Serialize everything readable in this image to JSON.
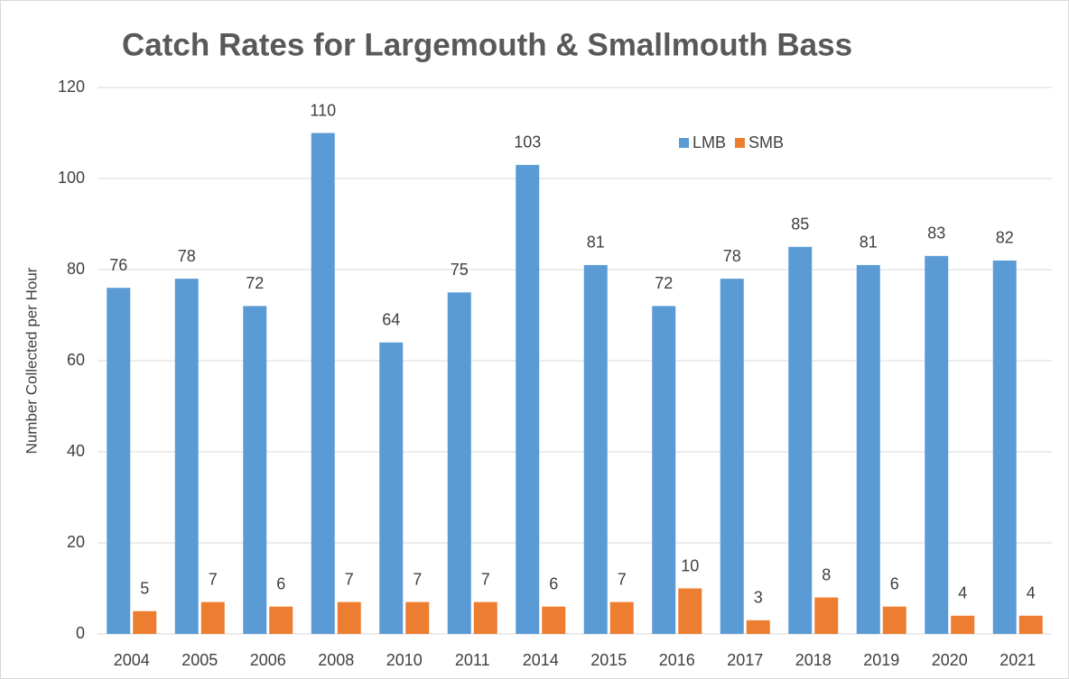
{
  "chart_data": {
    "type": "bar",
    "title": "Catch Rates for Largemouth & Smallmouth Bass",
    "y_label": "Number Collected per Hour",
    "categories": [
      "2004",
      "2005",
      "2006",
      "2008",
      "2010",
      "2011",
      "2014",
      "2015",
      "2016",
      "2017",
      "2018",
      "2019",
      "2020",
      "2021"
    ],
    "series": [
      {
        "name": "LMB",
        "color": "#5b9bd5",
        "values": [
          76,
          78,
          72,
          110,
          64,
          75,
          103,
          81,
          72,
          78,
          85,
          81,
          83,
          82
        ]
      },
      {
        "name": "SMB",
        "color": "#ed7d31",
        "values": [
          5,
          7,
          6,
          7,
          7,
          7,
          6,
          7,
          10,
          3,
          8,
          6,
          4,
          4
        ]
      }
    ],
    "ylim": [
      0,
      120
    ],
    "yticks": [
      0,
      20,
      40,
      60,
      80,
      100,
      120
    ],
    "grid": true,
    "legend": "top-right"
  }
}
